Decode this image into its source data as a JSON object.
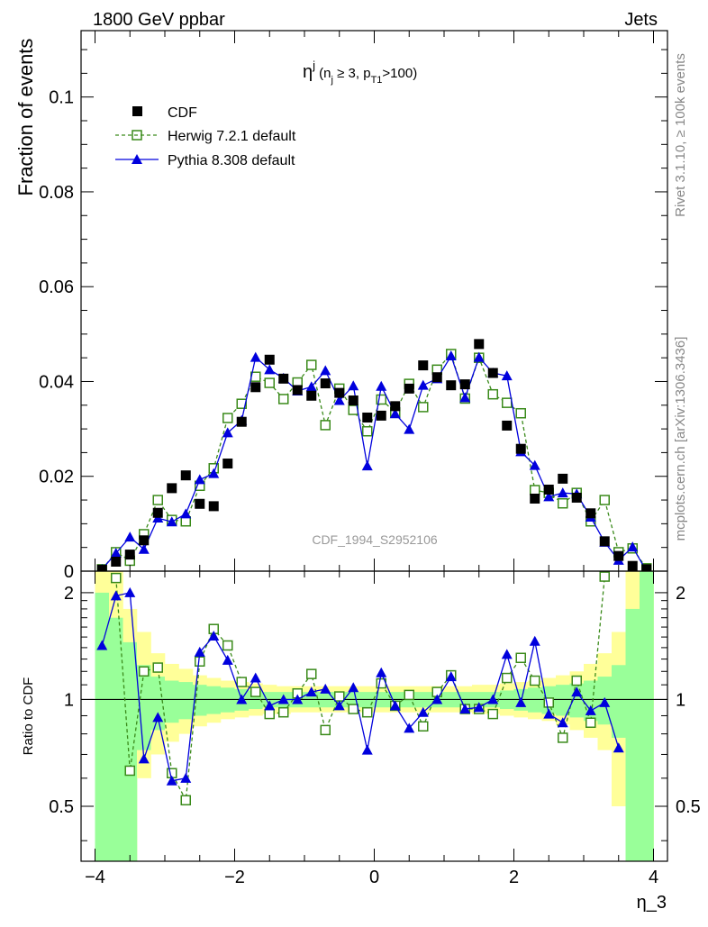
{
  "header": {
    "left": "1800 GeV ppbar",
    "right": "Jets"
  },
  "side_labels": {
    "rivet": "Rivet 3.1.10, ≥ 100k events",
    "mcplots": "mcplots.cern.ch [arXiv:1306.3436]"
  },
  "plot_title": {
    "main": "η",
    "sup": "j",
    "open": " (n",
    "sub1": "j",
    "mid": " ≥ 3, p",
    "sub2": "T1",
    "close": ">100)"
  },
  "analysis_id": "CDF_1994_S2952106",
  "colors": {
    "cdf": "#000000",
    "herwig": "#3a8a1a",
    "pythia": "#0000dd",
    "band_green": "#99ff99",
    "band_yellow": "#ffff99"
  },
  "chart_data": [
    {
      "type": "line",
      "ylabel": "Fraction of events",
      "xlim": [
        -4.2,
        4.2
      ],
      "ylim": [
        0,
        0.114
      ],
      "yticks": [
        0,
        0.02,
        0.04,
        0.06,
        0.08,
        0.1
      ],
      "ytick_labels": [
        "0",
        "0.02",
        "0.04",
        "0.06",
        "0.08",
        "0.1"
      ],
      "x": [
        -3.9,
        -3.7,
        -3.5,
        -3.3,
        -3.1,
        -2.9,
        -2.7,
        -2.5,
        -2.3,
        -2.1,
        -1.9,
        -1.7,
        -1.5,
        -1.3,
        -1.1,
        -0.9,
        -0.7,
        -0.5,
        -0.3,
        -0.1,
        0.1,
        0.3,
        0.5,
        0.7,
        0.9,
        1.1,
        1.3,
        1.5,
        1.7,
        1.9,
        2.1,
        2.3,
        2.5,
        2.7,
        2.9,
        3.1,
        3.3,
        3.5,
        3.7,
        3.9
      ],
      "series": [
        {
          "name": "CDF",
          "values": [
            0.0003,
            0.002,
            0.0035,
            0.0065,
            0.0123,
            0.0175,
            0.0202,
            0.0142,
            0.0137,
            0.0227,
            0.0315,
            0.0388,
            0.0446,
            0.0406,
            0.0382,
            0.037,
            0.0396,
            0.0376,
            0.036,
            0.0324,
            0.0328,
            0.0348,
            0.0385,
            0.0434,
            0.0409,
            0.0392,
            0.0394,
            0.0479,
            0.0418,
            0.0307,
            0.0258,
            0.0153,
            0.0172,
            0.0195,
            0.0155,
            0.0122,
            0.0063,
            0.0032,
            0.0011,
            0.0004
          ]
        },
        {
          "name": "Herwig 7.2.1 default",
          "values": [
            0.0004,
            0.004,
            0.0022,
            0.0078,
            0.015,
            0.0108,
            0.0105,
            0.018,
            0.0217,
            0.0323,
            0.0353,
            0.041,
            0.0397,
            0.0363,
            0.0398,
            0.0435,
            0.0308,
            0.0385,
            0.034,
            0.0295,
            0.0362,
            0.0335,
            0.0395,
            0.0346,
            0.0425,
            0.0458,
            0.0364,
            0.045,
            0.0373,
            0.0355,
            0.0333,
            0.0171,
            0.0165,
            0.0143,
            0.0165,
            0.0105,
            0.015,
            0.004,
            0.0048,
            0.0006
          ]
        },
        {
          "name": "Pythia 8.308 default",
          "values": [
            0.0004,
            0.0038,
            0.0072,
            0.0046,
            0.0112,
            0.0104,
            0.0121,
            0.0193,
            0.0206,
            0.0292,
            0.0318,
            0.0451,
            0.0425,
            0.0407,
            0.038,
            0.0389,
            0.0423,
            0.036,
            0.0391,
            0.0222,
            0.039,
            0.0332,
            0.0299,
            0.0392,
            0.0406,
            0.0454,
            0.0366,
            0.0451,
            0.0418,
            0.0412,
            0.0252,
            0.0223,
            0.0157,
            0.0165,
            0.0163,
            0.0114,
            0.0061,
            0.0023,
            0.0051,
            0.0
          ]
        }
      ],
      "legend": {
        "position": "top-left",
        "entries": [
          "CDF",
          "Herwig 7.2.1 default",
          "Pythia 8.308 default"
        ]
      }
    },
    {
      "type": "line",
      "ylabel": "Ratio to CDF",
      "xlabel": "η_3",
      "xlim": [
        -4.2,
        4.2
      ],
      "ylim": [
        0.35,
        2.3
      ],
      "yscale": "log",
      "yticks": [
        0.5,
        1,
        2
      ],
      "ytick_labels": [
        "0.5",
        "1",
        "2"
      ],
      "xticks": [
        -4,
        -2,
        0,
        2,
        4
      ],
      "xtick_labels": [
        "−4",
        "−2",
        "0",
        "2",
        "4"
      ],
      "x": [
        -3.9,
        -3.7,
        -3.5,
        -3.3,
        -3.1,
        -2.9,
        -2.7,
        -2.5,
        -2.3,
        -2.1,
        -1.9,
        -1.7,
        -1.5,
        -1.3,
        -1.1,
        -0.9,
        -0.7,
        -0.5,
        -0.3,
        -0.1,
        0.1,
        0.3,
        0.5,
        0.7,
        0.9,
        1.1,
        1.3,
        1.5,
        1.7,
        1.9,
        2.1,
        2.3,
        2.5,
        2.7,
        2.9,
        3.1,
        3.3,
        3.5,
        3.7,
        3.9
      ],
      "series": [
        {
          "name": "Herwig 7.2.1 default",
          "values": [
            null,
            2.2,
            0.63,
            1.2,
            1.23,
            0.62,
            0.52,
            1.28,
            1.58,
            1.42,
            1.12,
            1.05,
            0.91,
            0.92,
            1.04,
            1.18,
            0.82,
            1.02,
            0.94,
            0.92,
            1.11,
            0.96,
            1.03,
            0.84,
            1.05,
            1.17,
            0.94,
            0.94,
            0.91,
            1.15,
            1.31,
            1.13,
            0.98,
            0.78,
            1.13,
            0.86,
            2.22,
            null,
            null,
            null
          ]
        },
        {
          "name": "Pythia 8.308 default",
          "values": [
            1.42,
            1.96,
            2.0,
            0.68,
            0.89,
            0.59,
            0.6,
            1.36,
            1.51,
            1.29,
            1.0,
            1.15,
            0.96,
            1.0,
            1.0,
            1.05,
            1.07,
            0.96,
            1.08,
            0.72,
            1.19,
            0.96,
            0.83,
            0.92,
            1.0,
            1.16,
            0.94,
            0.95,
            1.0,
            1.34,
            0.98,
            1.46,
            0.91,
            0.86,
            1.05,
            0.93,
            0.98,
            0.73,
            null,
            null
          ]
        }
      ],
      "bands": {
        "x_edges": [
          -4.0,
          -3.8,
          -3.6,
          -3.4,
          -3.2,
          -3.0,
          -2.8,
          -2.6,
          -2.4,
          -2.2,
          -2.0,
          -1.8,
          -1.6,
          -1.4,
          -1.2,
          -1.0,
          -0.8,
          -0.6,
          -0.4,
          -0.2,
          0.0,
          0.2,
          0.4,
          0.6,
          0.8,
          1.0,
          1.2,
          1.4,
          1.6,
          1.8,
          2.0,
          2.2,
          2.4,
          2.6,
          2.8,
          3.0,
          3.2,
          3.4,
          3.6,
          3.8,
          4.0
        ],
        "green_lo": [
          0.3,
          0.3,
          0.3,
          0.72,
          0.82,
          0.86,
          0.88,
          0.9,
          0.91,
          0.92,
          0.93,
          0.94,
          0.95,
          0.95,
          0.95,
          0.95,
          0.95,
          0.95,
          0.95,
          0.95,
          0.95,
          0.95,
          0.95,
          0.95,
          0.95,
          0.95,
          0.95,
          0.95,
          0.95,
          0.94,
          0.93,
          0.92,
          0.91,
          0.9,
          0.89,
          0.87,
          0.85,
          0.78,
          0.3,
          0.3
        ],
        "green_hi": [
          2.0,
          1.7,
          1.45,
          1.25,
          1.16,
          1.13,
          1.12,
          1.1,
          1.09,
          1.08,
          1.07,
          1.06,
          1.05,
          1.05,
          1.05,
          1.05,
          1.05,
          1.05,
          1.05,
          1.05,
          1.05,
          1.05,
          1.05,
          1.05,
          1.05,
          1.05,
          1.05,
          1.05,
          1.05,
          1.06,
          1.07,
          1.08,
          1.09,
          1.1,
          1.11,
          1.13,
          1.16,
          1.25,
          1.8,
          2.4
        ],
        "yellow_lo": [
          0.3,
          0.3,
          0.3,
          0.6,
          0.7,
          0.76,
          0.8,
          0.84,
          0.86,
          0.88,
          0.89,
          0.9,
          0.91,
          0.91,
          0.92,
          0.92,
          0.92,
          0.92,
          0.92,
          0.92,
          0.92,
          0.92,
          0.92,
          0.92,
          0.92,
          0.92,
          0.92,
          0.91,
          0.91,
          0.9,
          0.89,
          0.88,
          0.87,
          0.85,
          0.82,
          0.78,
          0.72,
          0.5,
          0.3,
          0.3
        ],
        "yellow_hi": [
          2.4,
          2.4,
          1.8,
          1.55,
          1.35,
          1.26,
          1.22,
          1.17,
          1.15,
          1.13,
          1.12,
          1.11,
          1.1,
          1.09,
          1.09,
          1.09,
          1.09,
          1.09,
          1.09,
          1.09,
          1.09,
          1.09,
          1.09,
          1.09,
          1.09,
          1.09,
          1.09,
          1.1,
          1.1,
          1.11,
          1.12,
          1.13,
          1.15,
          1.17,
          1.2,
          1.26,
          1.35,
          1.55,
          2.4,
          2.4
        ]
      }
    }
  ]
}
